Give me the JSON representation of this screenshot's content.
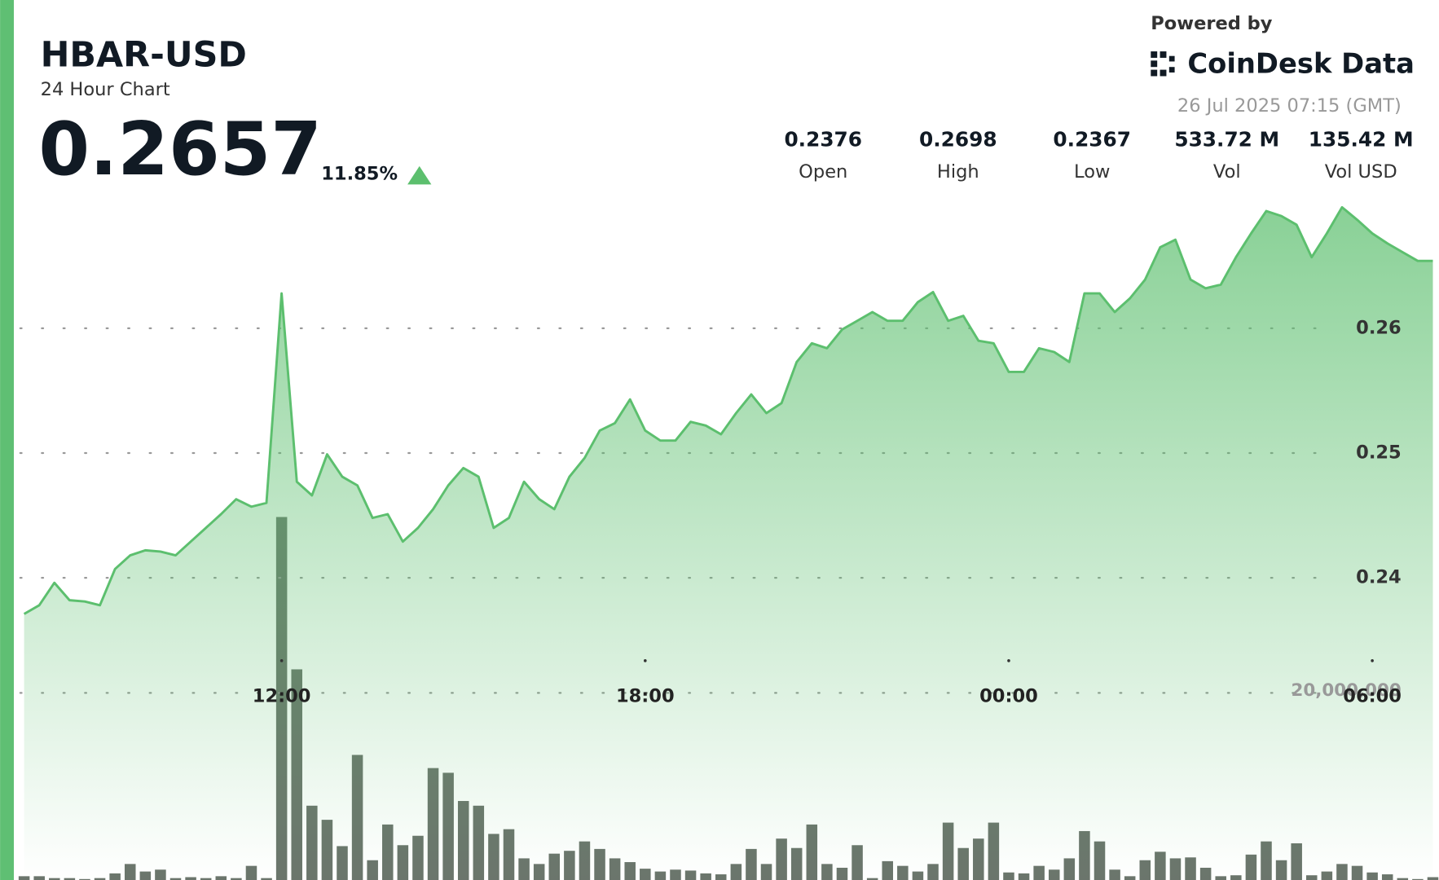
{
  "chart_data": {
    "type": "area",
    "title": "HBAR-USD",
    "subtitle": "24 Hour Chart",
    "price": "0.2657",
    "change": "11.85%",
    "powered_by": "Powered by",
    "brand": "CoinDesk Data",
    "timestamp": "26 Jul 2025 07:15 (GMT)",
    "stats": [
      {
        "value": "0.2376",
        "label": "Open"
      },
      {
        "value": "0.2698",
        "label": "High"
      },
      {
        "value": "0.2367",
        "label": "Low"
      },
      {
        "value": "533.72 M",
        "label": "Vol"
      },
      {
        "value": "135.42 M",
        "label": "Vol USD"
      }
    ],
    "x": [
      7.75,
      8,
      8.25,
      8.5,
      8.75,
      9,
      9.25,
      9.5,
      9.75,
      10,
      10.25,
      10.5,
      10.75,
      11,
      11.25,
      11.5,
      11.75,
      12,
      12.25,
      12.5,
      12.75,
      13,
      13.25,
      13.5,
      13.75,
      14,
      14.25,
      14.5,
      14.75,
      15,
      15.25,
      15.5,
      15.75,
      16,
      16.25,
      16.5,
      16.75,
      17,
      17.25,
      17.5,
      17.75,
      18,
      18.25,
      18.5,
      18.75,
      19,
      19.25,
      19.5,
      19.75,
      20,
      20.25,
      20.5,
      20.75,
      21,
      21.25,
      21.5,
      21.75,
      22,
      22.25,
      22.5,
      22.75,
      23,
      23.25,
      23.5,
      23.75,
      24,
      24.25,
      24.5,
      24.75,
      25,
      25.25,
      25.5,
      25.75,
      26,
      26.25,
      26.5,
      26.75,
      27,
      27.25,
      27.5,
      27.75,
      28,
      28.25,
      28.5,
      28.75,
      29,
      29.25,
      29.5,
      29.75,
      30,
      30.25,
      30.5,
      30.75,
      31
    ],
    "series": [
      {
        "color": "#5cbf6e",
        "values": [
          0.2371,
          0.2378,
          0.2396,
          0.2382,
          0.2381,
          0.2378,
          0.2407,
          0.2418,
          0.2422,
          0.2421,
          0.2418,
          0.2429,
          0.244,
          0.2451,
          0.2463,
          0.2457,
          0.246,
          0.2628,
          0.2477,
          0.2466,
          0.2499,
          0.2481,
          0.2474,
          0.2448,
          0.2451,
          0.2429,
          0.244,
          0.2455,
          0.2474,
          0.2488,
          0.2481,
          0.244,
          0.2448,
          0.2477,
          0.2463,
          0.2455,
          0.2481,
          0.2496,
          0.2518,
          0.2524,
          0.2543,
          0.2518,
          0.251,
          0.251,
          0.2525,
          0.2522,
          0.2515,
          0.2532,
          0.2547,
          0.2532,
          0.254,
          0.2573,
          0.2588,
          0.2584,
          0.2599,
          0.2606,
          0.2613,
          0.2606,
          0.2606,
          0.2621,
          0.2629,
          0.2606,
          0.261,
          0.259,
          0.2588,
          0.2565,
          0.2565,
          0.2584,
          0.2581,
          0.2573,
          0.2628,
          0.2628,
          0.2613,
          0.2624,
          0.2639,
          0.2665,
          0.2671,
          0.2639,
          0.2632,
          0.2635,
          0.2657,
          0.2676,
          0.2694,
          0.269,
          0.2683,
          0.2657,
          0.2676,
          0.2697,
          0.2687,
          0.2676,
          0.2668,
          0.2661,
          0.2654,
          0.2654
        ]
      },
      {
        "color": "#5b665c",
        "axis": "y2",
        "values": [
          500000,
          500000,
          300000,
          300000,
          200000,
          300000,
          800000,
          1800000,
          1000000,
          1200000,
          300000,
          400000,
          300000,
          500000,
          300000,
          1600000,
          300000,
          38700000,
          22500000,
          8000000,
          6500000,
          3700000,
          13400000,
          2200000,
          6000000,
          3800000,
          4800000,
          12000000,
          11500000,
          8500000,
          8000000,
          5000000,
          5500000,
          2400000,
          1800000,
          2900000,
          3200000,
          4200000,
          3400000,
          2400000,
          2000000,
          1300000,
          1000000,
          1200000,
          1100000,
          800000,
          700000,
          1800000,
          3400000,
          1800000,
          4500000,
          3500000,
          6000000,
          1800000,
          1400000,
          3800000,
          300000,
          2100000,
          1600000,
          1000000,
          1800000,
          6200000,
          3500000,
          4500000,
          6200000,
          900000,
          800000,
          1600000,
          1200000,
          2400000,
          5300000,
          4200000,
          1200000,
          500000,
          2200000,
          3100000,
          2400000,
          2500000,
          1400000,
          500000,
          600000,
          2800000,
          4200000,
          2200000,
          4000000,
          600000,
          1000000,
          1800000,
          1600000,
          900000,
          700000,
          300000,
          200000,
          400000
        ]
      }
    ],
    "xlim": [
      7.58,
      31.1
    ],
    "xticks": [
      {
        "value": 12,
        "label": "12:00"
      },
      {
        "value": 18,
        "label": "18:00"
      },
      {
        "value": 24,
        "label": "00:00"
      },
      {
        "value": 30,
        "label": "06:00"
      }
    ],
    "ylim": [
      0.2157,
      0.2705
    ],
    "yticks": [
      0.24,
      0.25,
      0.26
    ],
    "y2lim": [
      0,
      72700000
    ],
    "y2ticks": [
      {
        "value": 20000000,
        "label": "20,000,000"
      }
    ],
    "grid": true
  }
}
